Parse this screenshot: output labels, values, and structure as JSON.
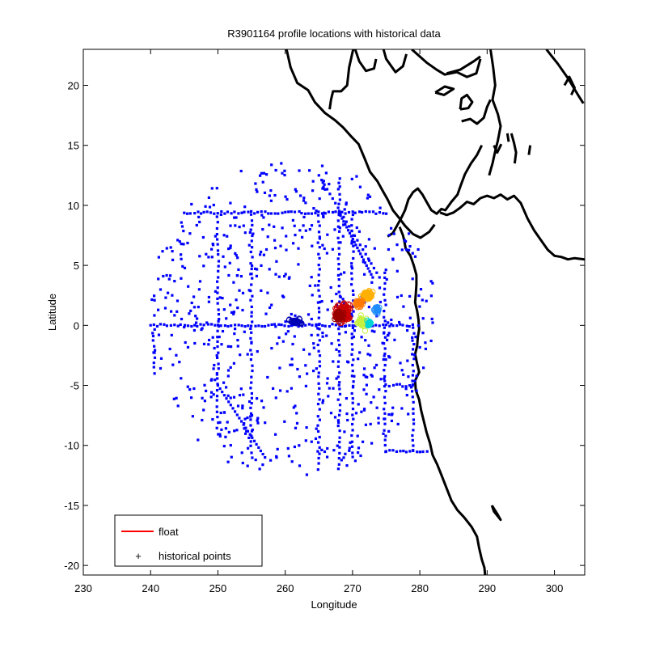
{
  "chart_data": {
    "type": "scatter",
    "title": "R3901164 profile locations with historical data",
    "xlabel": "Longitude",
    "ylabel": "Latitude",
    "xlim": [
      230,
      304.5
    ],
    "ylim": [
      -20.8,
      23
    ],
    "xticks": [
      230,
      240,
      250,
      260,
      270,
      280,
      290,
      300
    ],
    "yticks": [
      -20,
      -15,
      -10,
      -5,
      0,
      5,
      10,
      15,
      20
    ],
    "grid": false,
    "legend": {
      "placement": "bottom-left",
      "entries": [
        {
          "label": "float",
          "color": "#ff0000",
          "marker": "line"
        },
        {
          "label": "historical points",
          "color": "#0000ff",
          "marker": "dot"
        }
      ]
    },
    "series": [
      {
        "role": "historical",
        "color": "#0000ff",
        "tracks": [
          {
            "along": "lat",
            "value": 9.4,
            "from": 245,
            "to": 275
          },
          {
            "along": "lat",
            "value": 0,
            "from": 240,
            "to": 279
          },
          {
            "along": "lat",
            "value": -5,
            "from": 275,
            "to": 279
          },
          {
            "along": "lat",
            "value": -10.5,
            "from": 275,
            "to": 281
          },
          {
            "along": "lon",
            "value": 250,
            "from": -9,
            "to": 9.4
          },
          {
            "along": "lon",
            "value": 255,
            "from": -11,
            "to": 9.4
          },
          {
            "along": "lon",
            "value": 265,
            "from": -12,
            "to": 9.4
          },
          {
            "along": "lon",
            "value": 270,
            "from": -11,
            "to": 9.4
          },
          {
            "along": "lon",
            "value": 274.8,
            "from": -10.5,
            "to": 4.5
          },
          {
            "along": "lon",
            "value": 279,
            "from": -10.5,
            "to": 0
          },
          {
            "along": "lon",
            "value": 240.5,
            "from": -4,
            "to": 0
          },
          {
            "along": "lon",
            "value": 268,
            "from": -12,
            "to": 12.5
          },
          {
            "along": "diag",
            "x0": 250,
            "y0": -5,
            "x1": 257,
            "y1": -11
          },
          {
            "along": "diag",
            "x0": 265,
            "y0": 12.5,
            "x1": 274,
            "y1": 4
          },
          {
            "along": "diag",
            "x0": 268,
            "y0": 9.4,
            "x1": 273,
            "y1": 4
          }
        ],
        "cloud": {
          "lon_range": [
            240,
            282
          ],
          "lat_range": [
            -12.5,
            13.5
          ],
          "count": 640
        }
      },
      {
        "role": "float-profiles",
        "clusters": [
          {
            "lon": 268.5,
            "lat": 1.0,
            "color": "#cc0000",
            "spread": [
              1.6,
              1.2
            ],
            "count": 110
          },
          {
            "lon": 268.0,
            "lat": 0.8,
            "color": "#990000",
            "spread": [
              0.8,
              0.6
            ],
            "count": 40
          },
          {
            "lon": 272.2,
            "lat": 2.5,
            "color": "#ffb000",
            "spread": [
              1.1,
              0.6
            ],
            "count": 50
          },
          {
            "lon": 271.5,
            "lat": 0.3,
            "color": "#c8f040",
            "spread": [
              0.9,
              0.8
            ],
            "count": 35
          },
          {
            "lon": 271.0,
            "lat": 1.8,
            "color": "#ff7800",
            "spread": [
              0.7,
              0.5
            ],
            "count": 25
          },
          {
            "lon": 273.6,
            "lat": 1.3,
            "color": "#1e8cff",
            "spread": [
              0.5,
              0.4
            ],
            "count": 20
          },
          {
            "lon": 272.5,
            "lat": 0.2,
            "color": "#00d4d4",
            "spread": [
              0.4,
              0.4
            ],
            "count": 15
          },
          {
            "lon": 261.5,
            "lat": 0.3,
            "color": "#0000b4",
            "spread": [
              1.4,
              0.3
            ],
            "count": 30
          }
        ]
      }
    ],
    "coastlines": [
      [
        [
          298.8,
          23
        ],
        [
          299.5,
          22.5
        ],
        [
          300.5,
          21.8
        ],
        [
          302,
          20.6
        ],
        [
          303.5,
          19.2
        ],
        [
          304.3,
          18.5
        ]
      ],
      [
        [
          301.5,
          20
        ],
        [
          302.2,
          20.7
        ],
        [
          303,
          19.8
        ],
        [
          302.5,
          19.2
        ]
      ],
      [
        [
          286,
          18
        ],
        [
          287.2,
          18.1
        ],
        [
          287.8,
          18.6
        ],
        [
          287,
          19.2
        ],
        [
          286.2,
          18.9
        ],
        [
          286,
          18
        ]
      ],
      [
        [
          282.3,
          19.4
        ],
        [
          283.7,
          19.9
        ],
        [
          285,
          19.7
        ],
        [
          283.6,
          19.2
        ],
        [
          282.3,
          19.4
        ]
      ],
      [
        [
          284,
          21
        ],
        [
          286,
          21.3
        ],
        [
          288,
          22
        ],
        [
          289,
          22.4
        ]
      ],
      [
        [
          291,
          15
        ],
        [
          291.5,
          14.4
        ],
        [
          292.1,
          15.1
        ]
      ],
      [
        [
          293,
          16
        ],
        [
          293.2,
          15.3
        ]
      ],
      [
        [
          290.7,
          -15
        ],
        [
          291,
          -15.5
        ],
        [
          292,
          -16.2
        ],
        [
          291.5,
          -15.7
        ],
        [
          290.7,
          -15
        ]
      ],
      [
        [
          270.1,
          23
        ],
        [
          269.5,
          21.5
        ],
        [
          269.2,
          20
        ],
        [
          268.3,
          19.5
        ],
        [
          267.1,
          19.5
        ],
        [
          266.8,
          18.8
        ],
        [
          266.6,
          18
        ]
      ],
      [
        [
          270.4,
          23
        ],
        [
          271,
          22
        ],
        [
          272,
          21.2
        ],
        [
          273.2,
          21.4
        ],
        [
          273.5,
          22.2
        ]
      ],
      [
        [
          278.8,
          23
        ],
        [
          279.8,
          22.5
        ],
        [
          281,
          21.9
        ],
        [
          282.5,
          21.3
        ],
        [
          283.7,
          20.9
        ],
        [
          285.5,
          21.1
        ],
        [
          287,
          20.7
        ],
        [
          288.4,
          21
        ],
        [
          289,
          22.2
        ]
      ],
      [
        [
          274.6,
          23
        ],
        [
          275,
          22.2
        ],
        [
          276.4,
          21.1
        ],
        [
          277.5,
          21.6
        ],
        [
          278,
          22.6
        ]
      ],
      [
        [
          286.2,
          17
        ],
        [
          287.5,
          17.2
        ],
        [
          288.5,
          16.8
        ],
        [
          289.5,
          17.3
        ],
        [
          290,
          18.2
        ],
        [
          290.5,
          18.8
        ]
      ],
      [
        [
          260.2,
          23
        ],
        [
          260.8,
          21.5
        ],
        [
          261.8,
          20.2
        ],
        [
          263.4,
          19.6
        ],
        [
          264.4,
          18.6
        ],
        [
          265.9,
          17.7
        ],
        [
          267.4,
          17.1
        ],
        [
          268.6,
          16.5
        ],
        [
          269.7,
          15.8
        ],
        [
          270.9,
          15.1
        ],
        [
          271.8,
          13.9
        ],
        [
          272.6,
          12.8
        ],
        [
          273.7,
          12
        ],
        [
          274.5,
          11.2
        ],
        [
          275.2,
          10.5
        ],
        [
          276,
          9.6
        ],
        [
          277,
          8.9
        ],
        [
          277.8,
          8.3
        ],
        [
          279,
          7.6
        ],
        [
          280.1,
          7.3
        ],
        [
          281.4,
          7.8
        ],
        [
          282.2,
          8.4
        ]
      ],
      [
        [
          289.2,
          15
        ],
        [
          288.5,
          14.2
        ],
        [
          287.6,
          13.5
        ],
        [
          286.7,
          12.6
        ],
        [
          286.1,
          11.7
        ],
        [
          285.6,
          10.9
        ],
        [
          284.7,
          10.3
        ],
        [
          283.8,
          9.6
        ],
        [
          283.2,
          9.7
        ],
        [
          282.5,
          9.3
        ],
        [
          281.7,
          9.6
        ],
        [
          281,
          10.3
        ],
        [
          280.4,
          10.9
        ],
        [
          279.7,
          11.4
        ],
        [
          279,
          11.1
        ],
        [
          278.3,
          10.5
        ],
        [
          277.8,
          9.6
        ],
        [
          277.2,
          8.9
        ],
        [
          276.6,
          8.3
        ],
        [
          276,
          7.7
        ],
        [
          275.2,
          7.4
        ]
      ],
      [
        [
          283,
          9.4
        ],
        [
          284,
          9.2
        ],
        [
          285,
          9.4
        ],
        [
          286,
          9.8
        ],
        [
          287,
          10.3
        ],
        [
          288,
          10.1
        ],
        [
          289,
          10.6
        ],
        [
          290,
          10.8
        ],
        [
          291,
          10.6
        ],
        [
          292,
          10.9
        ],
        [
          293,
          10.5
        ],
        [
          294,
          10.8
        ],
        [
          295,
          10.2
        ],
        [
          296,
          8.9
        ],
        [
          297,
          7.9
        ],
        [
          298,
          7.1
        ],
        [
          299,
          6.3
        ],
        [
          300,
          5.8
        ],
        [
          301,
          5.7
        ],
        [
          302,
          5.5
        ],
        [
          303,
          5.6
        ],
        [
          304.5,
          5.5
        ]
      ],
      [
        [
          290.5,
          23
        ],
        [
          290.9,
          21.5
        ],
        [
          291.2,
          20
        ],
        [
          290.8,
          18.8
        ],
        [
          291.6,
          17.6
        ],
        [
          292,
          16.6
        ],
        [
          291.6,
          15.4
        ],
        [
          291.2,
          14.5
        ],
        [
          290.8,
          13.5
        ],
        [
          290.3,
          12.5
        ]
      ],
      [
        [
          293.6,
          16
        ],
        [
          294,
          15.2
        ],
        [
          294.3,
          14.4
        ],
        [
          294.1,
          13.5
        ]
      ],
      [
        [
          296.4,
          15
        ],
        [
          296.2,
          14.2
        ]
      ],
      [
        [
          277,
          8.2
        ],
        [
          277.5,
          7.5
        ],
        [
          277.7,
          7
        ],
        [
          277.9,
          6.4
        ],
        [
          278.6,
          5.8
        ],
        [
          279.1,
          5
        ],
        [
          279.5,
          4.2
        ],
        [
          279.5,
          3.4
        ],
        [
          279.4,
          2.6
        ],
        [
          279.3,
          1.9
        ],
        [
          279.6,
          1.2
        ],
        [
          279.8,
          0.5
        ],
        [
          279.9,
          -0.3
        ],
        [
          279.7,
          -1
        ],
        [
          279.6,
          -1.7
        ],
        [
          279.3,
          -2.4
        ],
        [
          279.6,
          -3.2
        ],
        [
          279.9,
          -3.9
        ],
        [
          279.3,
          -4.6
        ],
        [
          279.4,
          -5.4
        ],
        [
          279.9,
          -6.2
        ],
        [
          280.2,
          -7.1
        ],
        [
          280.6,
          -8
        ],
        [
          281,
          -8.9
        ],
        [
          281.5,
          -9.8
        ],
        [
          281.9,
          -10.8
        ],
        [
          282.6,
          -11.6
        ],
        [
          283.3,
          -12.6
        ],
        [
          284,
          -13.6
        ],
        [
          284.7,
          -14.6
        ],
        [
          285.6,
          -15.4
        ],
        [
          286.6,
          -16
        ],
        [
          287.7,
          -16.8
        ],
        [
          288.5,
          -17.6
        ],
        [
          288.8,
          -18.5
        ],
        [
          289.2,
          -19.5
        ],
        [
          289.6,
          -20.2
        ],
        [
          289.7,
          -20.8
        ]
      ]
    ]
  }
}
